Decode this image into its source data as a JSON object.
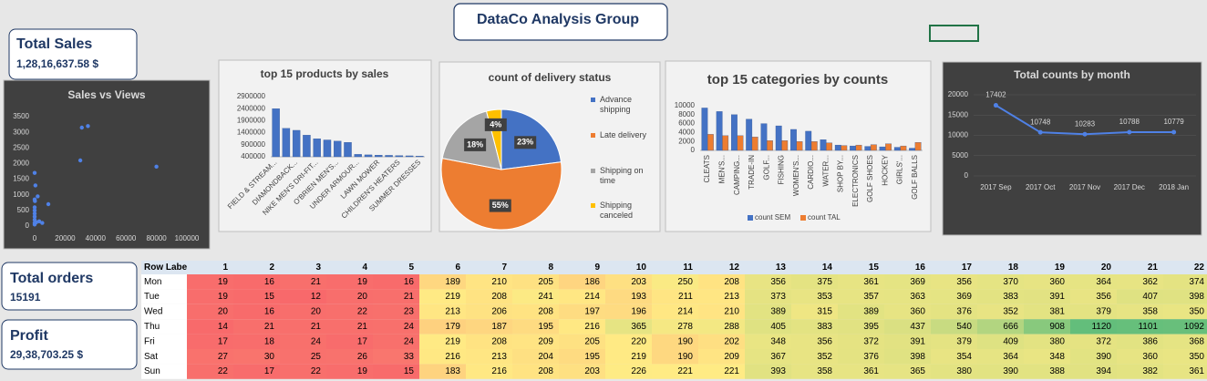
{
  "header": {
    "title": "DataCo Analysis Group"
  },
  "kpis": [
    {
      "label": "Total Sales",
      "value": "1,28,16,637.58 $"
    },
    {
      "label": "Total orders",
      "value": "15191"
    },
    {
      "label": "Profit",
      "value": "29,38,703.25 $"
    }
  ],
  "chart_data": [
    {
      "type": "scatter",
      "title": "Sales vs Views",
      "background": "#404040",
      "color": "#4f81e6",
      "x": [
        0,
        0,
        0,
        0,
        0,
        0,
        0,
        0,
        0,
        200,
        500,
        1000,
        2000,
        3000,
        5000,
        9000,
        30000,
        31000,
        35000,
        80000
      ],
      "values": [
        1700,
        850,
        600,
        500,
        400,
        300,
        200,
        100,
        50,
        800,
        1300,
        120,
        950,
        150,
        100,
        700,
        2100,
        3150,
        3200,
        1900
      ],
      "xlim": [
        0,
        100000
      ],
      "xticks": [
        0,
        20000,
        40000,
        60000,
        80000,
        100000
      ],
      "ylim": [
        0,
        3500
      ],
      "yticks": [
        0,
        500,
        1000,
        1500,
        2000,
        2500,
        3000,
        3500
      ],
      "grid": false
    },
    {
      "type": "bar",
      "title": "top 15 products by sales",
      "background": "#f2f2f2",
      "color": "#4472c4",
      "categories": [
        "FIELD & STREAM...",
        null,
        "DIAMONDBACK...",
        null,
        "NIKE MEN'S DRI-FIT...",
        null,
        "O'BRIEN MEN'S...",
        null,
        "UNDER ARMOUR...",
        null,
        "LAWN MOWER",
        null,
        "CHILDREN'S HEATERS",
        null,
        "SUMMER DRESSES"
      ],
      "values": [
        2400000,
        1580000,
        1500000,
        1300000,
        1150000,
        1100000,
        1050000,
        1000000,
        500000,
        480000,
        470000,
        460000,
        450000,
        440000,
        430000
      ],
      "ylim": [
        400000,
        2900000
      ],
      "yticks": [
        400000,
        900000,
        1400000,
        1900000,
        2400000,
        2900000
      ],
      "grid": false
    },
    {
      "type": "pie",
      "title": "count of delivery status",
      "background": "#f2f2f2",
      "categories": [
        "Advance shipping",
        "Late delivery",
        "Shipping on time",
        "Shipping canceled"
      ],
      "values": [
        23,
        55,
        18,
        4
      ],
      "value_labels": [
        "23%",
        "55%",
        "18%",
        "4%"
      ],
      "colors": [
        "#4472c4",
        "#ed7d31",
        "#a5a5a5",
        "#ffc000"
      ],
      "legend": "right"
    },
    {
      "type": "bar",
      "title": "top 15 categories by counts",
      "background": "#f2f2f2",
      "categories": [
        "CLEATS",
        "MEN'S...",
        "CAMPING...",
        "TRADE-IN",
        "GOLF...",
        "FISHING",
        "WOMEN'S...",
        "CARDIO...",
        "WATER...",
        "SHOP BY...",
        "ELECTRONICS",
        "GOLF SHOES",
        "HOCKEY",
        "GIRLS'...",
        "GOLF BALLS"
      ],
      "series": [
        {
          "name": "count SEM",
          "color": "#4472c4",
          "values": [
            9500,
            8700,
            8000,
            7000,
            6000,
            5500,
            4700,
            4300,
            2400,
            1200,
            1000,
            900,
            800,
            700,
            500
          ]
        },
        {
          "name": "count TAL",
          "color": "#ed7d31",
          "values": [
            3600,
            3300,
            3300,
            3000,
            2200,
            2200,
            2000,
            2000,
            1700,
            1100,
            1200,
            1300,
            1500,
            1000,
            1800
          ]
        }
      ],
      "ylim": [
        0,
        10000
      ],
      "yticks": [
        0,
        2000,
        4000,
        6000,
        8000,
        10000
      ],
      "grid": false,
      "legend": "bottom"
    },
    {
      "type": "line",
      "title": "Total counts by month",
      "background": "#404040",
      "color": "#4f81e6",
      "categories": [
        "2017 Sep",
        "2017 Oct",
        "2017 Nov",
        "2017 Dec",
        "2018 Jan"
      ],
      "values": [
        17402,
        10748,
        10283,
        10788,
        10779
      ],
      "ylim": [
        0,
        20000
      ],
      "yticks": [
        0,
        5000,
        10000,
        15000,
        20000
      ],
      "grid": true
    }
  ],
  "table": {
    "corner": "Row Labe",
    "columns": [
      1,
      2,
      3,
      4,
      5,
      6,
      7,
      8,
      9,
      10,
      11,
      12,
      13,
      14,
      15,
      16,
      17,
      18,
      19,
      20,
      21,
      22
    ],
    "color_scale": [
      "#f8696b",
      "#ffeb84",
      "#63be7b"
    ],
    "rows": [
      {
        "label": "Mon",
        "values": [
          19,
          16,
          21,
          19,
          16,
          189,
          210,
          205,
          186,
          203,
          250,
          208,
          356,
          375,
          361,
          369,
          356,
          370,
          360,
          364,
          362,
          374
        ]
      },
      {
        "label": "Tue",
        "values": [
          19,
          15,
          12,
          20,
          21,
          219,
          208,
          241,
          214,
          193,
          211,
          213,
          373,
          353,
          357,
          363,
          369,
          383,
          391,
          356,
          407,
          398
        ]
      },
      {
        "label": "Wed",
        "values": [
          20,
          16,
          20,
          22,
          23,
          213,
          206,
          208,
          197,
          196,
          214,
          210,
          389,
          315,
          389,
          360,
          376,
          352,
          381,
          379,
          358,
          350
        ]
      },
      {
        "label": "Thu",
        "values": [
          14,
          21,
          21,
          21,
          24,
          179,
          187,
          195,
          216,
          365,
          278,
          288,
          405,
          383,
          395,
          437,
          540,
          666,
          908,
          1120,
          1101,
          1092
        ]
      },
      {
        "label": "Fri",
        "values": [
          17,
          18,
          24,
          17,
          24,
          219,
          208,
          209,
          205,
          220,
          190,
          202,
          348,
          356,
          372,
          391,
          379,
          409,
          380,
          372,
          386,
          368
        ]
      },
      {
        "label": "Sat",
        "values": [
          27,
          30,
          25,
          26,
          33,
          216,
          213,
          204,
          195,
          219,
          190,
          209,
          367,
          352,
          376,
          398,
          354,
          364,
          348,
          390,
          360,
          350
        ]
      },
      {
        "label": "Sun",
        "values": [
          22,
          17,
          22,
          19,
          15,
          183,
          216,
          208,
          203,
          226,
          221,
          221,
          393,
          358,
          361,
          365,
          380,
          390,
          388,
          394,
          382,
          361
        ]
      }
    ]
  }
}
